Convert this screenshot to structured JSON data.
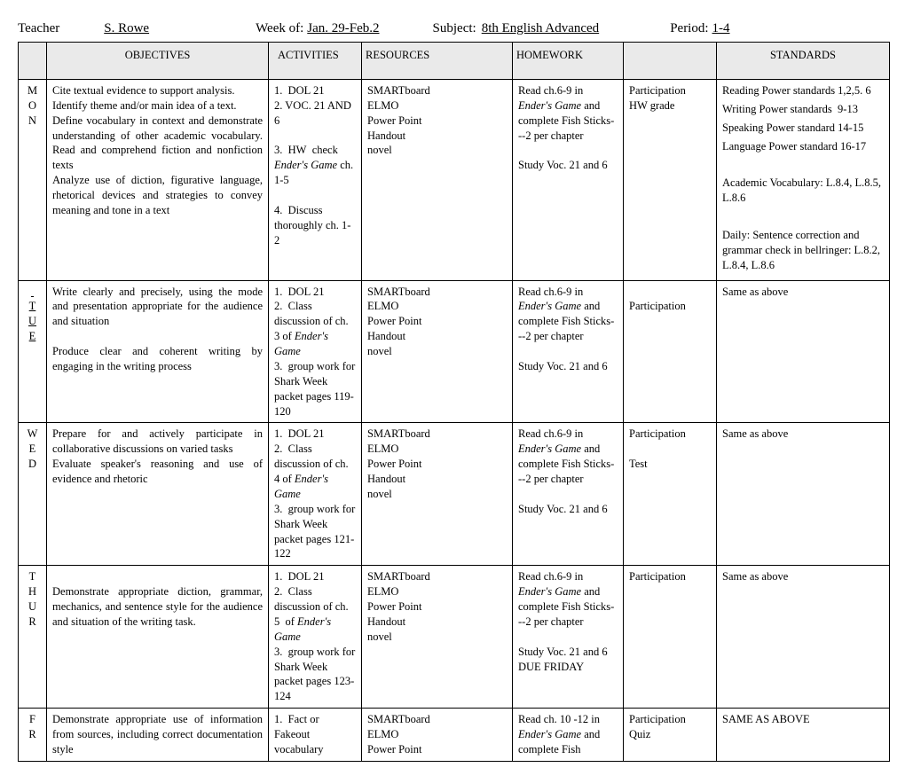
{
  "header": {
    "teacher_label": "Teacher",
    "teacher_value": "S. Rowe",
    "week_label": "Week of:",
    "week_value": "Jan. 29-Feb.2",
    "subject_label": "Subject:",
    "subject_value": "8th English Advanced",
    "period_label": "Period:",
    "period_value": "1-4"
  },
  "columns": {
    "objectives": "OBJECTIVES",
    "activities": "ACTIVITIES",
    "resources": "RESOURCES",
    "homework": "HOMEWORK",
    "participation": "",
    "standards": "STANDARDS"
  },
  "rows": [
    {
      "day": [
        "M",
        "O",
        "N"
      ],
      "day_underline": false,
      "objectives_html": "Cite textual evidence to support analysis.<br>Identify theme and/or main idea of a text.<br>Define vocabulary in context and demonstrate understanding of other academic vocabulary. Read and comprehend fiction and nonfiction texts<br>Analyze use of diction, figurative language, rhetorical devices and strategies to convey meaning and tone in a text",
      "activities_html": "1.&nbsp;&nbsp;DOL 21<br>2. VOC. 21 AND 6<br><br>3.&nbsp;&nbsp;HW&nbsp; check <span class='italic'>Ender's Game</span> ch. 1-5<br><br>4.&nbsp;&nbsp;Discuss thoroughly ch. 1-2",
      "resources_html": "SMARTboard<br>ELMO<br>Power Point<br>Handout<br>novel",
      "homework_html": "Read ch.6-9 in <span class='italic'>Ender's Game</span> and complete Fish Sticks---2 per chapter<br><br>Study Voc. 21 and 6",
      "participation_html": "Participation<br>HW grade",
      "standards_html": "<p>Reading Power standards 1,2,5. 6</p><p>Writing Power standards&nbsp; 9-13</p><p>Speaking Power standard 14-15</p><p>Language Power standard 16-17</p><p>&nbsp;</p><p>Academic Vocabulary: L.8.4, L.8.5, L.8.6</p><p>&nbsp;</p><p>Daily: Sentence correction and grammar check in bellringer: L.8.2, L.8.4, L.8.6</p>"
    },
    {
      "day": [
        "",
        "T",
        "U",
        "E"
      ],
      "day_underline": true,
      "objectives_html": "Write clearly and precisely, using the mode and presentation appropriate for the audience and situation<br><br>Produce clear and coherent writing by engaging in the writing process",
      "activities_html": "1.&nbsp;&nbsp;DOL 21<br>2.&nbsp;&nbsp;Class discussion of ch. 3 of <span class='italic'>Ender's Game</span><br>3.&nbsp;&nbsp;group work for Shark Week packet pages 119-120",
      "resources_html": "SMARTboard<br>ELMO<br>Power Point<br>Handout<br>novel",
      "homework_html": "Read ch.6-9 in <span class='italic'>Ender's Game</span> and complete Fish Sticks---2 per chapter<br><br>Study Voc. 21 and 6",
      "participation_html": "<br>Participation",
      "standards_html": "<p>Same as above</p>"
    },
    {
      "day": [
        "W",
        "E",
        "D"
      ],
      "day_underline": false,
      "objectives_html": "Prepare for and actively participate in collaborative discussions on varied tasks<br>Evaluate speaker's reasoning and use of evidence and rhetoric",
      "activities_html": "1.&nbsp;&nbsp;DOL 21<br>2.&nbsp;&nbsp;Class discussion of ch. 4 of <span class='italic'>Ender's Game</span><br>3.&nbsp;&nbsp;group work for Shark Week packet pages 121-122",
      "resources_html": "SMARTboard<br>ELMO<br>Power Point<br>Handout<br>novel",
      "homework_html": "Read ch.6-9 in <span class='italic'>Ender's Game</span> and complete Fish Sticks---2 per chapter<br><br>Study Voc. 21 and 6",
      "participation_html": "Participation<br><br>Test",
      "standards_html": "<p>Same as above</p>"
    },
    {
      "day": [
        "T",
        "H",
        "U",
        "R"
      ],
      "day_underline": false,
      "objectives_html": "<br>Demonstrate appropriate diction, grammar, mechanics, and sentence style for the audience and situation of the writing task.",
      "activities_html": "1.&nbsp;&nbsp;DOL 21<br>2.&nbsp;&nbsp;Class discussion of ch. 5&nbsp; of <span class='italic'>Ender's Game</span><br>3.&nbsp;&nbsp;group work for Shark Week packet pages 123-124",
      "resources_html": "SMARTboard<br>ELMO<br>Power Point<br>Handout<br>novel",
      "homework_html": "Read ch.6-9 in <span class='italic'>Ender's Game</span> and complete Fish Sticks---2 per chapter<br><br>Study Voc. 21 and 6<br>DUE FRIDAY",
      "participation_html": "Participation",
      "standards_html": "<p>Same as above</p>"
    },
    {
      "day": [
        "F",
        "R"
      ],
      "day_underline": false,
      "objectives_html": "Demonstrate appropriate use of information from sources, including correct documentation style",
      "activities_html": "1.&nbsp;&nbsp;Fact or Fakeout vocabulary",
      "resources_html": "SMARTboard<br>ELMO<br>Power Point",
      "homework_html": "Read ch. 10 -12 in <span class='italic'>Ender's Game</span> and complete Fish",
      "participation_html": "Participation<br>Quiz",
      "standards_html": "<p>SAME AS ABOVE</p>"
    }
  ],
  "style": {
    "header_bg": "#eaeaea",
    "border_color": "#000000",
    "font_body": "Times New Roman"
  }
}
